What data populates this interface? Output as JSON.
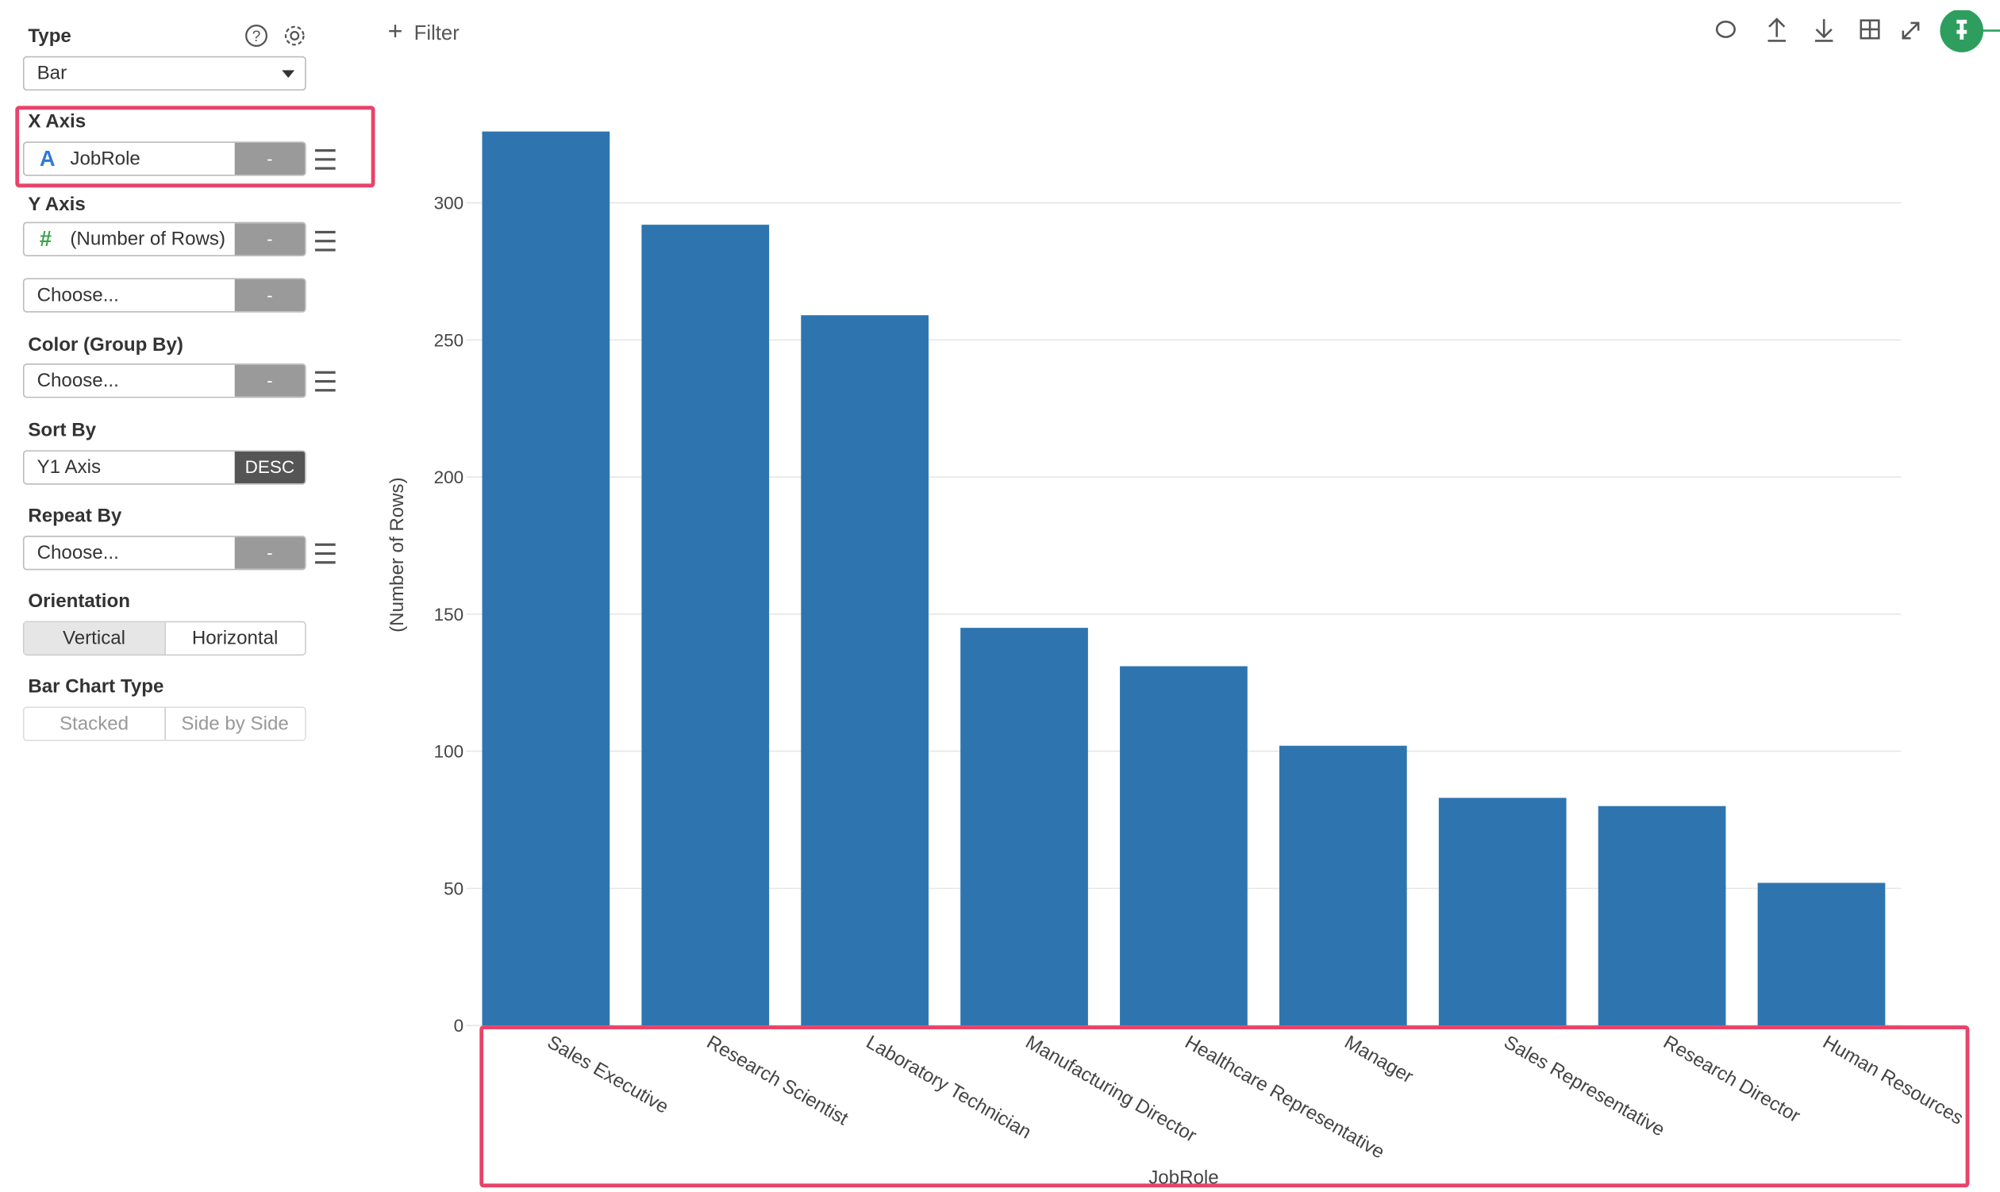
{
  "sidebar": {
    "type": {
      "label": "Type",
      "value": "Bar"
    },
    "x_axis": {
      "label": "X Axis",
      "icon": "A",
      "field": "JobRole",
      "button": "-"
    },
    "y_axis": {
      "label": "Y Axis",
      "icon": "#",
      "field": "(Number of Rows)",
      "button": "-",
      "second_field": "Choose...",
      "second_button": "-"
    },
    "color": {
      "label": "Color (Group By)",
      "field": "Choose...",
      "button": "-"
    },
    "sort": {
      "label": "Sort By",
      "field": "Y1 Axis",
      "button": "DESC"
    },
    "repeat": {
      "label": "Repeat By",
      "field": "Choose...",
      "button": "-"
    },
    "orientation": {
      "label": "Orientation",
      "options": [
        "Vertical",
        "Horizontal"
      ]
    },
    "bar_chart_type": {
      "label": "Bar Chart Type",
      "options": [
        "Stacked",
        "Side by Side"
      ]
    }
  },
  "toolbar": {
    "filter": "Filter"
  },
  "chart_data": {
    "type": "bar",
    "x_label": "JobRole",
    "y_label": "(Number of Rows)",
    "categories": [
      "Sales Executive",
      "Research Scientist",
      "Laboratory Technician",
      "Manufacturing Director",
      "Healthcare Representative",
      "Manager",
      "Sales Representative",
      "Research Director",
      "Human Resources"
    ],
    "values": [
      326,
      292,
      259,
      145,
      131,
      102,
      83,
      80,
      52
    ],
    "color": "#2e75b0",
    "ylim": [
      0,
      330
    ],
    "yticks": [
      0,
      50,
      100,
      150,
      200,
      250,
      300
    ],
    "grid": true
  }
}
